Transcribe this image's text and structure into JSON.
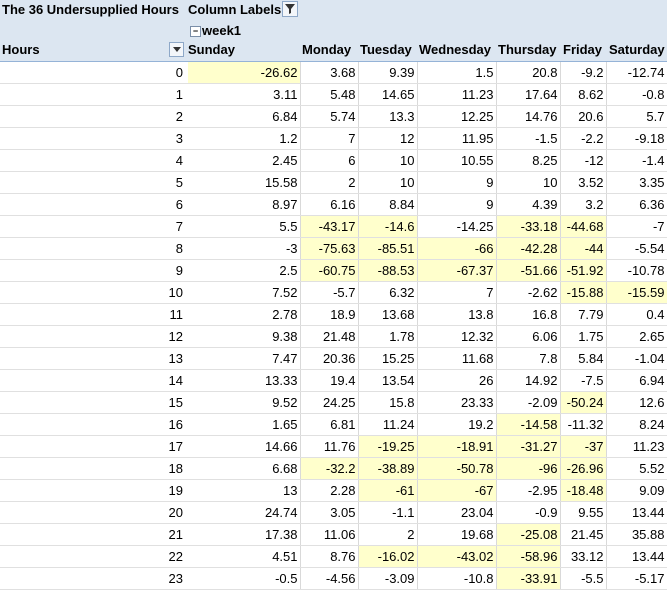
{
  "pivot": {
    "title": "The 36 Undersupplied Hours",
    "column_labels": "Column Labels",
    "week": "week1",
    "row_header": "Hours",
    "days": [
      "Sunday",
      "Monday",
      "Tuesday",
      "Wednesday",
      "Thursday",
      "Friday",
      "Saturday"
    ],
    "highlight_color": "#ffffcc",
    "header_color": "#dce6f1",
    "icons": {
      "filter": "filter-funnel-icon",
      "collapse": "collapse-minus-icon",
      "dropdown": "dropdown-arrow-icon"
    },
    "rows": [
      {
        "hour": "0",
        "values": [
          "-26.62",
          "3.68",
          "9.39",
          "1.5",
          "20.8",
          "-9.2",
          "-12.74"
        ],
        "highlight": [
          true,
          false,
          false,
          false,
          false,
          false,
          false
        ]
      },
      {
        "hour": "1",
        "values": [
          "3.11",
          "5.48",
          "14.65",
          "11.23",
          "17.64",
          "8.62",
          "-0.8"
        ],
        "highlight": [
          false,
          false,
          false,
          false,
          false,
          false,
          false
        ]
      },
      {
        "hour": "2",
        "values": [
          "6.84",
          "5.74",
          "13.3",
          "12.25",
          "14.76",
          "20.6",
          "5.7"
        ],
        "highlight": [
          false,
          false,
          false,
          false,
          false,
          false,
          false
        ]
      },
      {
        "hour": "3",
        "values": [
          "1.2",
          "7",
          "12",
          "11.95",
          "-1.5",
          "-2.2",
          "-9.18"
        ],
        "highlight": [
          false,
          false,
          false,
          false,
          false,
          false,
          false
        ]
      },
      {
        "hour": "4",
        "values": [
          "2.45",
          "6",
          "10",
          "10.55",
          "8.25",
          "-12",
          "-1.4"
        ],
        "highlight": [
          false,
          false,
          false,
          false,
          false,
          false,
          false
        ]
      },
      {
        "hour": "5",
        "values": [
          "15.58",
          "2",
          "10",
          "9",
          "10",
          "3.52",
          "3.35"
        ],
        "highlight": [
          false,
          false,
          false,
          false,
          false,
          false,
          false
        ]
      },
      {
        "hour": "6",
        "values": [
          "8.97",
          "6.16",
          "8.84",
          "9",
          "4.39",
          "3.2",
          "6.36"
        ],
        "highlight": [
          false,
          false,
          false,
          false,
          false,
          false,
          false
        ]
      },
      {
        "hour": "7",
        "values": [
          "5.5",
          "-43.17",
          "-14.6",
          "-14.25",
          "-33.18",
          "-44.68",
          "-7"
        ],
        "highlight": [
          false,
          true,
          true,
          false,
          true,
          true,
          false
        ]
      },
      {
        "hour": "8",
        "values": [
          "-3",
          "-75.63",
          "-85.51",
          "-66",
          "-42.28",
          "-44",
          "-5.54"
        ],
        "highlight": [
          false,
          true,
          true,
          true,
          true,
          true,
          false
        ]
      },
      {
        "hour": "9",
        "values": [
          "2.5",
          "-60.75",
          "-88.53",
          "-67.37",
          "-51.66",
          "-51.92",
          "-10.78"
        ],
        "highlight": [
          false,
          true,
          true,
          true,
          true,
          true,
          false
        ]
      },
      {
        "hour": "10",
        "values": [
          "7.52",
          "-5.7",
          "6.32",
          "7",
          "-2.62",
          "-15.88",
          "-15.59"
        ],
        "highlight": [
          false,
          false,
          false,
          false,
          false,
          true,
          true
        ]
      },
      {
        "hour": "11",
        "values": [
          "2.78",
          "18.9",
          "13.68",
          "13.8",
          "16.8",
          "7.79",
          "0.4"
        ],
        "highlight": [
          false,
          false,
          false,
          false,
          false,
          false,
          false
        ]
      },
      {
        "hour": "12",
        "values": [
          "9.38",
          "21.48",
          "1.78",
          "12.32",
          "6.06",
          "1.75",
          "2.65"
        ],
        "highlight": [
          false,
          false,
          false,
          false,
          false,
          false,
          false
        ]
      },
      {
        "hour": "13",
        "values": [
          "7.47",
          "20.36",
          "15.25",
          "11.68",
          "7.8",
          "5.84",
          "-1.04"
        ],
        "highlight": [
          false,
          false,
          false,
          false,
          false,
          false,
          false
        ]
      },
      {
        "hour": "14",
        "values": [
          "13.33",
          "19.4",
          "13.54",
          "26",
          "14.92",
          "-7.5",
          "6.94"
        ],
        "highlight": [
          false,
          false,
          false,
          false,
          false,
          false,
          false
        ]
      },
      {
        "hour": "15",
        "values": [
          "9.52",
          "24.25",
          "15.8",
          "23.33",
          "-2.09",
          "-50.24",
          "12.6"
        ],
        "highlight": [
          false,
          false,
          false,
          false,
          false,
          true,
          false
        ]
      },
      {
        "hour": "16",
        "values": [
          "1.65",
          "6.81",
          "11.24",
          "19.2",
          "-14.58",
          "-11.32",
          "8.24"
        ],
        "highlight": [
          false,
          false,
          false,
          false,
          true,
          false,
          false
        ]
      },
      {
        "hour": "17",
        "values": [
          "14.66",
          "11.76",
          "-19.25",
          "-18.91",
          "-31.27",
          "-37",
          "11.23"
        ],
        "highlight": [
          false,
          false,
          true,
          true,
          true,
          true,
          false
        ]
      },
      {
        "hour": "18",
        "values": [
          "6.68",
          "-32.2",
          "-38.89",
          "-50.78",
          "-96",
          "-26.96",
          "5.52"
        ],
        "highlight": [
          false,
          true,
          true,
          true,
          true,
          true,
          false
        ]
      },
      {
        "hour": "19",
        "values": [
          "13",
          "2.28",
          "-61",
          "-67",
          "-2.95",
          "-18.48",
          "9.09"
        ],
        "highlight": [
          false,
          false,
          true,
          true,
          false,
          true,
          false
        ]
      },
      {
        "hour": "20",
        "values": [
          "24.74",
          "3.05",
          "-1.1",
          "23.04",
          "-0.9",
          "9.55",
          "13.44"
        ],
        "highlight": [
          false,
          false,
          false,
          false,
          false,
          false,
          false
        ]
      },
      {
        "hour": "21",
        "values": [
          "17.38",
          "11.06",
          "2",
          "19.68",
          "-25.08",
          "21.45",
          "35.88"
        ],
        "highlight": [
          false,
          false,
          false,
          false,
          true,
          false,
          false
        ]
      },
      {
        "hour": "22",
        "values": [
          "4.51",
          "8.76",
          "-16.02",
          "-43.02",
          "-58.96",
          "33.12",
          "13.44"
        ],
        "highlight": [
          false,
          false,
          true,
          true,
          true,
          false,
          false
        ]
      },
      {
        "hour": "23",
        "values": [
          "-0.5",
          "-4.56",
          "-3.09",
          "-10.8",
          "-33.91",
          "-5.5",
          "-5.17"
        ],
        "highlight": [
          false,
          false,
          false,
          false,
          true,
          false,
          false
        ]
      }
    ]
  }
}
